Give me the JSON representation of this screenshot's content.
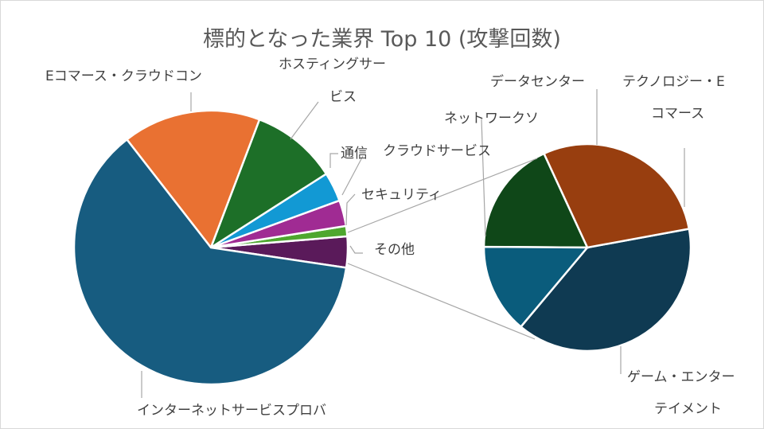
{
  "chart_data": {
    "type": "pie",
    "subtype": "pie-of-pie",
    "title": "標的となった業界 Top 10 (攻撃回数)",
    "main_pie": {
      "slices": [
        {
          "label": "インターネットサービスプロバ",
          "value": 61.0,
          "color": "#175c80"
        },
        {
          "label": "Eコマース・クラウドコン",
          "value": 16.0,
          "color": "#e97132"
        },
        {
          "label": "ホスティングサー ビス",
          "value": 10.0,
          "color": "#1d6f28"
        },
        {
          "label": "通信",
          "value": 3.4,
          "color": "#1299d4"
        },
        {
          "label": "クラウドサービス セキュリティ",
          "value": 3.0,
          "color": "#a02b93"
        },
        {
          "label": "",
          "value": 1.2,
          "color": "#4ea72e"
        },
        {
          "label": "その他",
          "value": 3.6,
          "color": "#5a1a5a"
        }
      ]
    },
    "secondary_pie": {
      "parent_slice": "その他",
      "slices": [
        {
          "label": "ゲーム・エンター テイメント",
          "value": 39.0,
          "color": "#0f3a52"
        },
        {
          "label": "ネットワークソ",
          "value": 29.0,
          "color": "#983e0f"
        },
        {
          "label": "データセンター",
          "value": 18.0,
          "color": "#0f4718"
        },
        {
          "label": "テクノロジー・E コマース",
          "value": 14.0,
          "color": "#0a5c7c"
        }
      ]
    },
    "legend": "none",
    "data_labels": "outside-with-leader-lines"
  },
  "labels": {
    "isp": "インターネットサービスプロバ",
    "ecommerce": "Eコマース・クラウドコン",
    "hosting_1": "ホスティングサー",
    "hosting_2": "ビス",
    "telecom": "通信",
    "cloudsec_1": "クラウドサービス",
    "cloudsec_2": "セキュリティ",
    "other": "その他",
    "datacenter": "データセンター",
    "tech_1": "テクノロジー・E",
    "tech_2": "コマース",
    "network": "ネットワークソ",
    "game_1": "ゲーム・エンター",
    "game_2": "テイメント"
  }
}
